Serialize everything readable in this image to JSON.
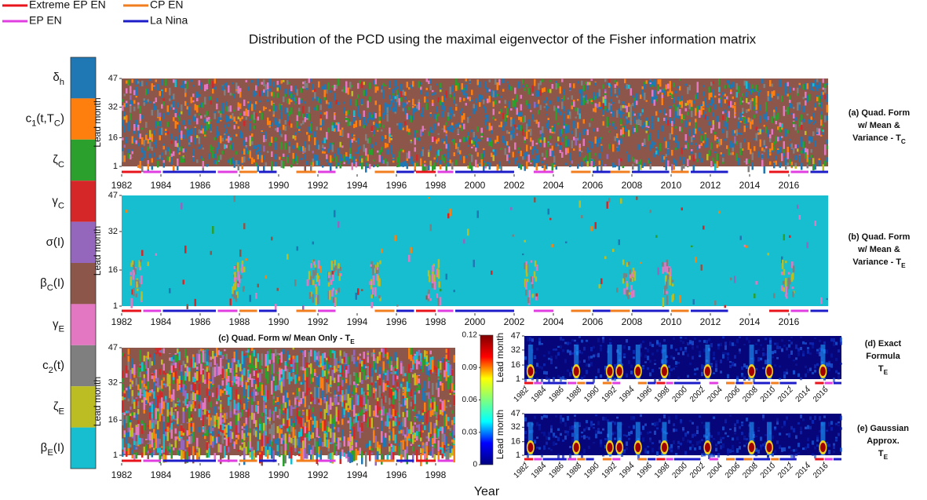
{
  "chart_data": {
    "type": "heatmap",
    "title": "Distribution of the PCD using the maximal eigenvector of the Fisher information matrix",
    "legend": [
      {
        "name": "Extreme EP EN",
        "color": "#e8141c"
      },
      {
        "name": "CP EN",
        "color": "#f07d1e"
      },
      {
        "name": "EP EN",
        "color": "#e03ee0"
      },
      {
        "name": "La Nina",
        "color": "#1c1cc8"
      }
    ],
    "factors": [
      {
        "label": [
          {
            "text": "δ"
          },
          {
            "text": "h",
            "sub": true
          }
        ],
        "color": "#1f77b4"
      },
      {
        "label": [
          {
            "text": "c"
          },
          {
            "text": "1",
            "sub": true
          },
          {
            "text": "(t,T"
          },
          {
            "text": "C",
            "sub": true
          },
          {
            "text": ")"
          }
        ],
        "color": "#ff7f0e"
      },
      {
        "label": [
          {
            "text": "ζ"
          },
          {
            "text": "C",
            "sub": true
          }
        ],
        "color": "#2ca02c"
      },
      {
        "label": [
          {
            "text": "γ"
          },
          {
            "text": "C",
            "sub": true
          }
        ],
        "color": "#d62728"
      },
      {
        "label": [
          {
            "text": "σ(I)"
          }
        ],
        "color": "#9467bd"
      },
      {
        "label": [
          {
            "text": "β"
          },
          {
            "text": "C",
            "sub": true
          },
          {
            "text": "(I)"
          }
        ],
        "color": "#8c564b"
      },
      {
        "label": [
          {
            "text": "γ"
          },
          {
            "text": "E",
            "sub": true
          }
        ],
        "color": "#e377c2"
      },
      {
        "label": [
          {
            "text": "c"
          },
          {
            "text": "2",
            "sub": true
          },
          {
            "text": "(t)"
          }
        ],
        "color": "#7f7f7f"
      },
      {
        "label": [
          {
            "text": "ζ"
          },
          {
            "text": "E",
            "sub": true
          }
        ],
        "color": "#bcbd22"
      },
      {
        "label": [
          {
            "text": "β"
          },
          {
            "text": "E",
            "sub": true
          },
          {
            "text": "(I)"
          }
        ],
        "color": "#17becf"
      }
    ],
    "events": [
      {
        "series": 0,
        "start": 1982,
        "end": 1983
      },
      {
        "series": 2,
        "start": 1983.1,
        "end": 1984
      },
      {
        "series": 3,
        "start": 1984.1,
        "end": 1986.8
      },
      {
        "series": 2,
        "start": 1986.9,
        "end": 1987.9
      },
      {
        "series": 1,
        "start": 1988,
        "end": 1988.9
      },
      {
        "series": 3,
        "start": 1989,
        "end": 1989.9
      },
      {
        "series": 1,
        "start": 1990.9,
        "end": 1991.9
      },
      {
        "series": 2,
        "start": 1992,
        "end": 1992.9
      },
      {
        "series": 1,
        "start": 1994.9,
        "end": 1995.9
      },
      {
        "series": 3,
        "start": 1996,
        "end": 1996.9
      },
      {
        "series": 0,
        "start": 1997,
        "end": 1998
      },
      {
        "series": 2,
        "start": 1998.1,
        "end": 1998.9
      },
      {
        "series": 3,
        "start": 1999,
        "end": 2002
      },
      {
        "series": 2,
        "start": 2003,
        "end": 2004
      },
      {
        "series": 1,
        "start": 2004.9,
        "end": 2005.9
      },
      {
        "series": 3,
        "start": 2006,
        "end": 2006.9
      },
      {
        "series": 1,
        "start": 2006.9,
        "end": 2007.9
      },
      {
        "series": 3,
        "start": 2008,
        "end": 2009.9
      },
      {
        "series": 1,
        "start": 2010,
        "end": 2010.9
      },
      {
        "series": 3,
        "start": 2011,
        "end": 2012.9
      },
      {
        "series": 0,
        "start": 2015,
        "end": 2016
      },
      {
        "series": 2,
        "start": 2016.1,
        "end": 2017
      },
      {
        "series": 3,
        "start": 2017.1,
        "end": 2018
      }
    ],
    "panels": [
      {
        "label": [
          "(a) Quad. Form",
          "w/ Mean &",
          [
            {
              "text": "Variance - T"
            },
            {
              "text": "C",
              "sub": true
            }
          ]
        ],
        "ylabel": "Lead month",
        "ylim": [
          1,
          47
        ],
        "yticks": [
          1,
          16,
          32,
          47
        ],
        "xlim": [
          1982,
          2018
        ],
        "xticks": [
          1982,
          1984,
          1986,
          1988,
          1990,
          1992,
          1994,
          1996,
          1998,
          2000,
          2002,
          2004,
          2006,
          2008,
          2010,
          2012,
          2014,
          2016
        ],
        "fill": "#8c564b"
      },
      {
        "label": [
          "(b) Quad. Form",
          "w/ Mean &",
          [
            {
              "text": "Variance - T"
            },
            {
              "text": "E",
              "sub": true
            }
          ]
        ],
        "ylabel": "Lead month",
        "ylim": [
          1,
          47
        ],
        "yticks": [
          1,
          16,
          32,
          47
        ],
        "xlim": [
          1982,
          2018
        ],
        "xticks": [
          1982,
          1984,
          1986,
          1988,
          1990,
          1992,
          1994,
          1996,
          1998,
          2000,
          2002,
          2004,
          2006,
          2008,
          2010,
          2012,
          2014,
          2016
        ],
        "fill": "#17becf"
      },
      {
        "label": [
          [
            {
              "text": "(c) Quad. Form w/ Mean Only - T"
            },
            {
              "text": "E",
              "sub": true
            }
          ]
        ],
        "ylabel": "Lead month",
        "ylim": [
          1,
          47
        ],
        "yticks": [
          1,
          16,
          32,
          47
        ],
        "xlim": [
          1982,
          1999
        ],
        "xticks": [
          1982,
          1984,
          1986,
          1988,
          1990,
          1992,
          1994,
          1996,
          1998
        ],
        "fill": "mixed"
      },
      {
        "label": [
          "(d) Exact",
          "Formula",
          [
            {
              "text": "T"
            },
            {
              "text": "E",
              "sub": true
            }
          ]
        ],
        "ylabel": "Lead month",
        "ylim": [
          1,
          47
        ],
        "yticks": [
          1,
          16,
          32,
          47
        ],
        "xlim": [
          1982,
          2018
        ],
        "xticks": [
          1982,
          1984,
          1986,
          1988,
          1990,
          1992,
          1994,
          1996,
          1998,
          2000,
          2002,
          2004,
          2006,
          2008,
          2010,
          2012,
          2014,
          2016
        ],
        "fill": "jet"
      },
      {
        "label": [
          "(e) Gaussian",
          "Approx.",
          [
            {
              "text": "T"
            },
            {
              "text": "E",
              "sub": true
            }
          ]
        ],
        "ylabel": "Lead month",
        "ylim": [
          1,
          47
        ],
        "yticks": [
          1,
          16,
          32,
          47
        ],
        "xlim": [
          1982,
          2018
        ],
        "xticks": [
          1982,
          1984,
          1986,
          1988,
          1990,
          1992,
          1994,
          1996,
          1998,
          2000,
          2002,
          2004,
          2006,
          2008,
          2010,
          2012,
          2014,
          2016
        ],
        "fill": "jet"
      }
    ],
    "colorbar": {
      "ylim": [
        0,
        0.12
      ],
      "yticks": [
        0,
        0.03,
        0.06,
        0.09,
        0.12
      ]
    },
    "xlabel": "Year"
  }
}
